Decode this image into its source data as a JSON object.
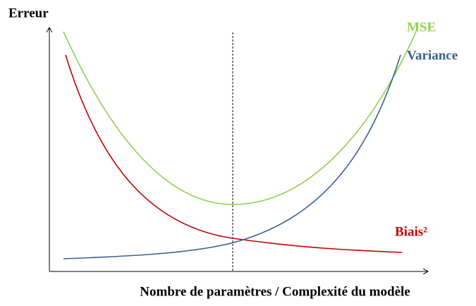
{
  "y_axis": {
    "label": "Erreur"
  },
  "x_axis": {
    "label": "Nombre de paramètres / Complexité du modèle"
  },
  "curves": [
    {
      "label": "MSE"
    },
    {
      "label": "Variance"
    },
    {
      "label": "Biais²"
    }
  ]
}
